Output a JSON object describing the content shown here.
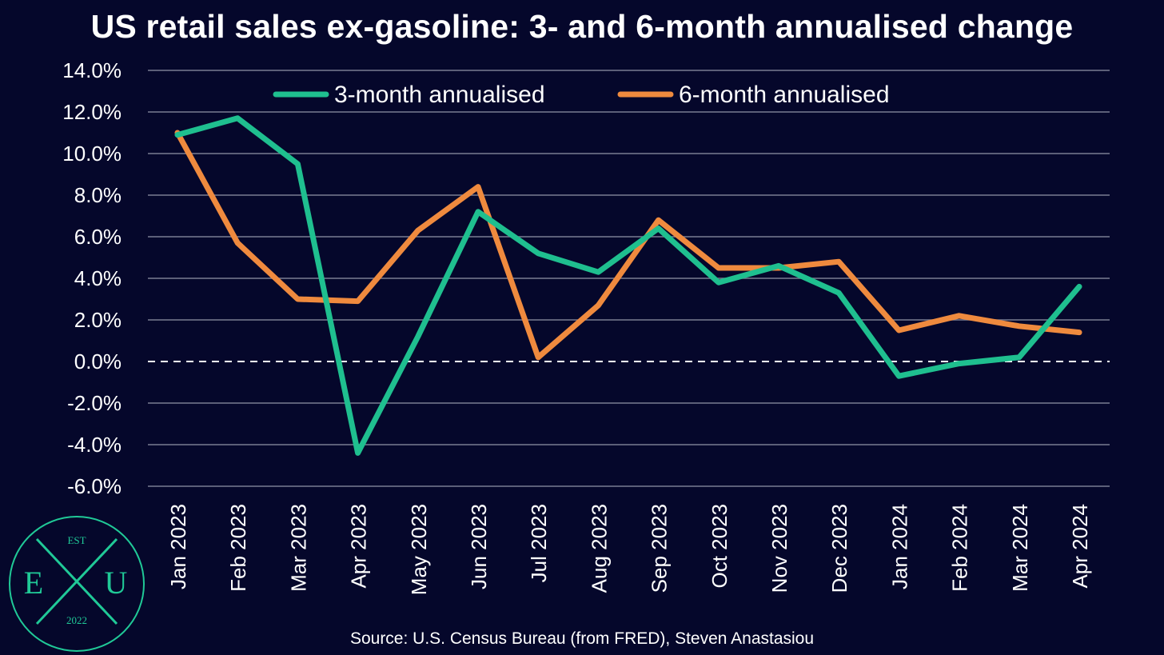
{
  "title": "US retail sales ex-gasoline: 3- and 6-month annualised change",
  "source": "Source: U.S. Census Bureau (from FRED), Steven Anastasiou",
  "logo": {
    "top_text": "EST",
    "left_letter": "E",
    "right_letter": "U",
    "year": "2022",
    "color": "#20c997"
  },
  "colors": {
    "background": "#05072b",
    "grid": "#7a7d92",
    "zero_line": "#ffffff",
    "text": "#ffffff"
  },
  "chart_data": {
    "type": "line",
    "title": "US retail sales ex-gasoline: 3- and 6-month annualised change",
    "categories": [
      "Jan 2023",
      "Feb 2023",
      "Mar 2023",
      "Apr 2023",
      "May 2023",
      "Jun 2023",
      "Jul 2023",
      "Aug 2023",
      "Sep 2023",
      "Oct 2023",
      "Nov 2023",
      "Dec 2023",
      "Jan 2024",
      "Feb 2024",
      "Mar 2024",
      "Apr 2024"
    ],
    "y_tick_labels": [
      "14.0%",
      "12.0%",
      "10.0%",
      "8.0%",
      "6.0%",
      "4.0%",
      "2.0%",
      "0.0%",
      "-2.0%",
      "-4.0%",
      "-6.0%"
    ],
    "ylim": [
      -6,
      14
    ],
    "y_ticks": [
      14,
      12,
      10,
      8,
      6,
      4,
      2,
      0,
      -2,
      -4,
      -6
    ],
    "grid": true,
    "zero_line_style": "dashed",
    "legend_position": "top",
    "series": [
      {
        "name": "3-month annualised",
        "color": "#1fbf8f",
        "values": [
          10.9,
          11.7,
          9.5,
          -4.4,
          1.2,
          7.2,
          5.2,
          4.3,
          6.4,
          3.8,
          4.6,
          3.3,
          -0.7,
          -0.1,
          0.2,
          3.6
        ]
      },
      {
        "name": "6-month annualised",
        "color": "#ef8a3e",
        "values": [
          11.0,
          5.7,
          3.0,
          2.9,
          6.3,
          8.4,
          0.2,
          2.7,
          6.8,
          4.5,
          4.5,
          4.8,
          1.5,
          2.2,
          1.7,
          1.4
        ]
      }
    ]
  }
}
